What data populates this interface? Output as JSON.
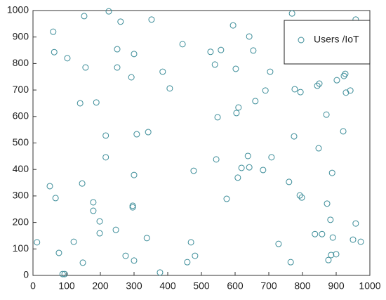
{
  "chart_data": {
    "type": "scatter",
    "series": [
      {
        "name": "Users /IoT",
        "color": "#3b8c98",
        "x": [
          12,
          50,
          67,
          60,
          63,
          77,
          88,
          94,
          102,
          121,
          140,
          146,
          148,
          152,
          156,
          179,
          179,
          188,
          198,
          198,
          216,
          216,
          225,
          246,
          250,
          250,
          260,
          275,
          292,
          296,
          296,
          300,
          300,
          300,
          308,
          338,
          342,
          352,
          377,
          385,
          406,
          444,
          458,
          469,
          477,
          481,
          527,
          540,
          544,
          548,
          558,
          575,
          594,
          602,
          604,
          610,
          608,
          619,
          638,
          642,
          642,
          654,
          660,
          683,
          690,
          704,
          708,
          729,
          760,
          765,
          769,
          775,
          777,
          792,
          794,
          798,
          837,
          844,
          850,
          848,
          858,
          871,
          873,
          877,
          883,
          885,
          888,
          890,
          900,
          902,
          921,
          923,
          927,
          929,
          942,
          950,
          958,
          958,
          973
        ],
        "y": [
          125,
          337,
          292,
          920,
          843,
          85,
          5,
          5,
          820,
          127,
          650,
          347,
          48,
          979,
          785,
          276,
          244,
          653,
          204,
          159,
          528,
          446,
          997,
          172,
          854,
          785,
          958,
          74,
          748,
          263,
          257,
          836,
          379,
          56,
          533,
          141,
          541,
          966,
          11,
          769,
          706,
          873,
          50,
          125,
          395,
          74,
          844,
          796,
          438,
          597,
          851,
          289,
          944,
          780,
          613,
          634,
          369,
          406,
          451,
          902,
          408,
          849,
          658,
          398,
          698,
          769,
          446,
          119,
          353,
          50,
          989,
          525,
          703,
          302,
          692,
          294,
          156,
          716,
          724,
          480,
          156,
          607,
          271,
          58,
          210,
          77,
          387,
          143,
          80,
          737,
          544,
          753,
          761,
          690,
          698,
          135,
          966,
          196,
          127
        ]
      }
    ],
    "xlim": [
      0,
      1000
    ],
    "ylim": [
      0,
      1000
    ],
    "xticks": [
      0,
      100,
      200,
      300,
      400,
      500,
      600,
      700,
      800,
      900,
      1000
    ],
    "yticks": [
      0,
      100,
      200,
      300,
      400,
      500,
      600,
      700,
      800,
      900,
      1000
    ],
    "legend": "upper right"
  }
}
